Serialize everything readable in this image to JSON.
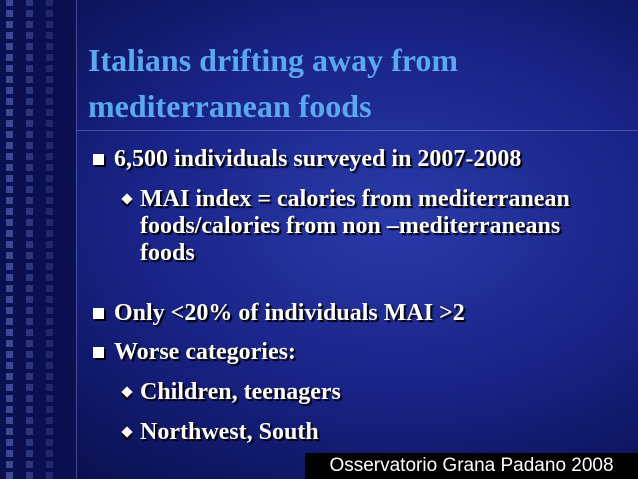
{
  "title": {
    "lines": [
      "Italians drifting away from",
      "mediterranean foods"
    ]
  },
  "bullets": [
    {
      "text": "6,500 individuals surveyed in 2007-2008",
      "children": [
        "MAI index = calories from mediterranean foods/calories from non –mediterraneans foods"
      ]
    },
    {
      "text": "Only <20% of individuals MAI >2",
      "children": []
    },
    {
      "text": "Worse categories:",
      "children": [
        "Children, teenagers",
        "Northwest, South"
      ]
    }
  ],
  "footer": "Osservatorio Grana Padano 2008"
}
